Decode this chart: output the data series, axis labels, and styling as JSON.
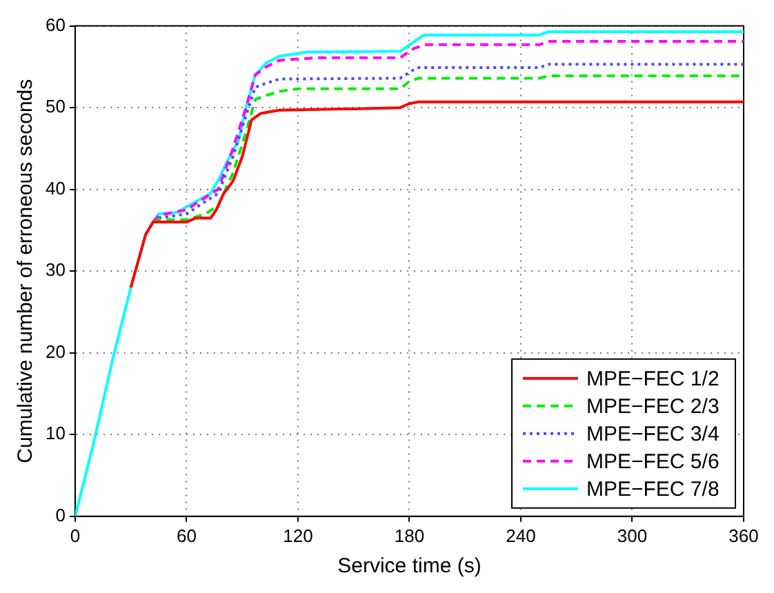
{
  "chart_data": {
    "type": "line",
    "xlabel": "Service time (s)",
    "ylabel": "Cumulative number of erroneous seconds",
    "xlim": [
      0,
      360
    ],
    "xticks": [
      0,
      60,
      120,
      180,
      240,
      300,
      360
    ],
    "ylim": [
      0,
      60
    ],
    "yticks": [
      0,
      10,
      20,
      30,
      40,
      50,
      60
    ],
    "grid": true,
    "legend": "bottom right",
    "marker": "none",
    "series": [
      {
        "name": "MPE−FEC 1/2",
        "color": "#ff0000",
        "line_style": "solid",
        "x": [
          30,
          38,
          42,
          45,
          60,
          65,
          73,
          76,
          80,
          85,
          90,
          95,
          100,
          105,
          110,
          160,
          175,
          180,
          185,
          360
        ],
        "values": [
          28,
          34.5,
          36,
          36,
          36,
          36.5,
          36.5,
          37.5,
          39.5,
          41,
          44,
          48.5,
          49.3,
          49.5,
          49.7,
          49.9,
          50,
          50.5,
          50.7,
          50.7
        ]
      },
      {
        "name": "MPE−FEC 2/3",
        "color": "#00ee00",
        "line_style": "dashed",
        "x": [
          42,
          45,
          60,
          70,
          77,
          85,
          92,
          97,
          103,
          110,
          120,
          175,
          180,
          185,
          250,
          255,
          360
        ],
        "values": [
          36,
          36.3,
          36.3,
          37,
          38,
          42,
          47,
          51,
          51.5,
          52,
          52.3,
          52.3,
          53.2,
          53.6,
          53.6,
          53.9,
          53.9
        ]
      },
      {
        "name": "MPE−FEC 3/4",
        "color": "#4a4aff",
        "line_style": "dotted",
        "x": [
          42,
          45,
          60,
          70,
          77,
          85,
          92,
          97,
          103,
          110,
          175,
          182,
          185,
          250,
          255,
          360
        ],
        "values": [
          36,
          36.5,
          37,
          38.5,
          39.5,
          44,
          49,
          52.5,
          53,
          53.5,
          53.6,
          54.6,
          54.9,
          54.9,
          55.3,
          55.3
        ]
      },
      {
        "name": "MPE−FEC 5/6",
        "color": "#ff00ff",
        "line_style": "dashed",
        "x": [
          42,
          45,
          60,
          70,
          77,
          85,
          92,
          97,
          103,
          110,
          130,
          175,
          182,
          188,
          250,
          255,
          360
        ],
        "values": [
          36,
          36.8,
          37.5,
          39,
          40,
          45,
          50,
          54,
          55,
          55.8,
          56.1,
          56.1,
          57.2,
          57.7,
          57.7,
          58.1,
          58.1
        ]
      },
      {
        "name": "MPE−FEC 7/8",
        "color": "#00ffff",
        "line_style": "solid",
        "x": [
          0,
          10,
          20,
          30,
          38,
          42,
          45,
          55,
          65,
          73,
          78,
          82,
          88,
          92,
          97,
          103,
          110,
          125,
          175,
          182,
          188,
          250,
          255,
          360
        ],
        "values": [
          0,
          9,
          19,
          28,
          34.5,
          36,
          37,
          37.2,
          38.5,
          39.5,
          41.5,
          43.5,
          46,
          50,
          54,
          55.5,
          56.3,
          56.8,
          56.9,
          58,
          58.9,
          58.9,
          59.3,
          59.3
        ]
      }
    ]
  }
}
